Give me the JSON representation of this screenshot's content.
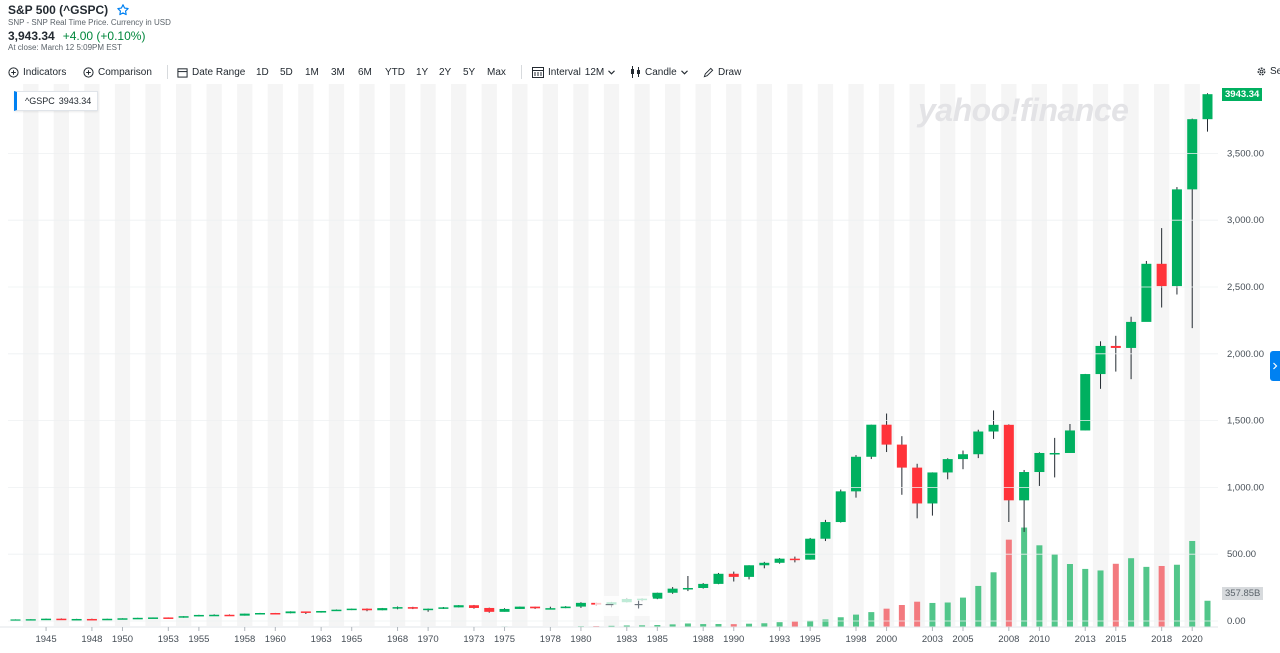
{
  "header": {
    "title": "S&P 500 (^GSPC)",
    "subtitle": "SNP - SNP Real Time Price. Currency in USD",
    "price": "3,943.34",
    "change": "+4.00 (+0.10%)",
    "close_time": "At close: March 12 5:09PM EST"
  },
  "toolbar": {
    "indicators_label": "Indicators",
    "comparison_label": "Comparison",
    "date_range_label": "Date Range",
    "ranges": [
      "1D",
      "5D",
      "1M",
      "3M",
      "6M",
      "YTD",
      "1Y",
      "2Y",
      "5Y",
      "Max"
    ],
    "interval_label": "Interval",
    "interval_value": "12M",
    "chart_type_label": "Candle",
    "draw_label": "Draw",
    "settings_label": "Se"
  },
  "colors": {
    "up": "#00b060",
    "down": "#ff333a",
    "vol_up": "#52c68a",
    "vol_down": "#f37a7f",
    "band": "#f5f5f5",
    "accent": "#0081f2"
  },
  "icons": {
    "indicators": "plus-circle-icon",
    "comparison": "plus-circle-icon",
    "date_range": "calendar-icon",
    "interval": "calendar-grid-icon",
    "candle": "candlestick-icon",
    "draw": "pencil-icon",
    "watchlist": "star-icon",
    "settings": "gear-icon"
  },
  "watermark": "yahoo!finance",
  "legend": {
    "symbol": "^GSPC",
    "value": "3943.34"
  },
  "price_tag": "3943.34",
  "volume_tag": "357.85B",
  "chart_data": {
    "type": "candlestick",
    "y_axis": {
      "min": 0,
      "max": 4000,
      "ticks": [
        0,
        500,
        1000,
        1500,
        2000,
        2500,
        3000,
        3500
      ],
      "tick_labels": [
        "0.00",
        "500.00",
        "1,000.00",
        "1,500.00",
        "2,000.00",
        "2,500.00",
        "3,000.00",
        "3,500.00"
      ],
      "position": "right"
    },
    "x_axis": {
      "tick_labels": [
        "1945",
        "1948",
        "1950",
        "1953",
        "1955",
        "1958",
        "1960",
        "1963",
        "1965",
        "1968",
        "1970",
        "1973",
        "1975",
        "1978",
        "1980",
        "1983",
        "1985",
        "1988",
        "1990",
        "1993",
        "1995",
        "1998",
        "2000",
        "2003",
        "2005",
        "2008",
        "2010",
        "2013",
        "2015",
        "2018",
        "2020"
      ],
      "min_year": 1943,
      "max_year": 2021
    },
    "alternating_year_bands": true,
    "candles": [
      {
        "year": 1943,
        "o": 10.1,
        "h": 12.0,
        "l": 9.8,
        "c": 11.7
      },
      {
        "year": 1944,
        "o": 11.7,
        "h": 13.3,
        "l": 11.5,
        "c": 13.3
      },
      {
        "year": 1945,
        "o": 13.3,
        "h": 17.7,
        "l": 13.2,
        "c": 17.4
      },
      {
        "year": 1946,
        "o": 17.4,
        "h": 19.3,
        "l": 14.1,
        "c": 15.3
      },
      {
        "year": 1947,
        "o": 15.3,
        "h": 16.2,
        "l": 13.7,
        "c": 15.3
      },
      {
        "year": 1948,
        "o": 15.3,
        "h": 17.1,
        "l": 13.8,
        "c": 15.2
      },
      {
        "year": 1949,
        "o": 15.2,
        "h": 16.8,
        "l": 13.5,
        "c": 16.8
      },
      {
        "year": 1950,
        "o": 16.8,
        "h": 20.4,
        "l": 16.6,
        "c": 20.4
      },
      {
        "year": 1951,
        "o": 20.4,
        "h": 23.9,
        "l": 20.3,
        "c": 23.8
      },
      {
        "year": 1952,
        "o": 23.8,
        "h": 26.6,
        "l": 23.1,
        "c": 26.6
      },
      {
        "year": 1953,
        "o": 26.6,
        "h": 26.7,
        "l": 22.7,
        "c": 24.8
      },
      {
        "year": 1954,
        "o": 24.8,
        "h": 36.0,
        "l": 24.8,
        "c": 35.98
      },
      {
        "year": 1955,
        "o": 36.0,
        "h": 46.4,
        "l": 34.6,
        "c": 45.5
      },
      {
        "year": 1956,
        "o": 45.5,
        "h": 49.7,
        "l": 43.1,
        "c": 46.7
      },
      {
        "year": 1957,
        "o": 46.7,
        "h": 49.1,
        "l": 38.9,
        "c": 39.99
      },
      {
        "year": 1958,
        "o": 40.0,
        "h": 55.2,
        "l": 40.3,
        "c": 55.2
      },
      {
        "year": 1959,
        "o": 55.2,
        "h": 60.7,
        "l": 53.6,
        "c": 59.9
      },
      {
        "year": 1960,
        "o": 59.9,
        "h": 60.4,
        "l": 52.3,
        "c": 58.1
      },
      {
        "year": 1961,
        "o": 58.1,
        "h": 72.6,
        "l": 57.6,
        "c": 71.6
      },
      {
        "year": 1962,
        "o": 71.6,
        "h": 71.1,
        "l": 52.3,
        "c": 63.1
      },
      {
        "year": 1963,
        "o": 63.1,
        "h": 75.0,
        "l": 62.7,
        "c": 75.0
      },
      {
        "year": 1964,
        "o": 75.0,
        "h": 86.3,
        "l": 75.4,
        "c": 84.8
      },
      {
        "year": 1965,
        "o": 84.8,
        "h": 92.6,
        "l": 81.6,
        "c": 92.4
      },
      {
        "year": 1966,
        "o": 92.4,
        "h": 94.1,
        "l": 73.2,
        "c": 80.3
      },
      {
        "year": 1967,
        "o": 80.3,
        "h": 97.6,
        "l": 80.4,
        "c": 96.5
      },
      {
        "year": 1968,
        "o": 96.5,
        "h": 108.4,
        "l": 87.7,
        "c": 103.9
      },
      {
        "year": 1969,
        "o": 103.9,
        "h": 106.2,
        "l": 89.2,
        "c": 92.1
      },
      {
        "year": 1970,
        "o": 92.1,
        "h": 93.5,
        "l": 69.3,
        "c": 92.2
      },
      {
        "year": 1971,
        "o": 92.2,
        "h": 104.8,
        "l": 90.2,
        "c": 102.1
      },
      {
        "year": 1972,
        "o": 102.1,
        "h": 119.1,
        "l": 101.7,
        "c": 118.1
      },
      {
        "year": 1973,
        "o": 118.1,
        "h": 120.2,
        "l": 92.2,
        "c": 97.6
      },
      {
        "year": 1974,
        "o": 97.6,
        "h": 99.8,
        "l": 62.3,
        "c": 68.6
      },
      {
        "year": 1975,
        "o": 68.6,
        "h": 95.6,
        "l": 70.0,
        "c": 90.2
      },
      {
        "year": 1976,
        "o": 90.2,
        "h": 107.8,
        "l": 90.9,
        "c": 107.5
      },
      {
        "year": 1977,
        "o": 107.5,
        "h": 107.0,
        "l": 90.7,
        "c": 95.1
      },
      {
        "year": 1978,
        "o": 95.1,
        "h": 106.9,
        "l": 86.9,
        "c": 96.1
      },
      {
        "year": 1979,
        "o": 96.1,
        "h": 111.3,
        "l": 96.1,
        "c": 107.9
      },
      {
        "year": 1980,
        "o": 107.9,
        "h": 140.5,
        "l": 98.2,
        "c": 135.8
      },
      {
        "year": 1981,
        "o": 135.8,
        "h": 138.1,
        "l": 112.8,
        "c": 122.6
      },
      {
        "year": 1982,
        "o": 122.6,
        "h": 143.0,
        "l": 102.4,
        "c": 140.6
      },
      {
        "year": 1983,
        "o": 140.6,
        "h": 172.7,
        "l": 138.3,
        "c": 164.9
      },
      {
        "year": 1984,
        "o": 164.9,
        "h": 170.4,
        "l": 147.8,
        "c": 167.2
      },
      {
        "year": 1985,
        "o": 167.2,
        "h": 212.0,
        "l": 163.4,
        "c": 211.3
      },
      {
        "year": 1986,
        "o": 211.3,
        "h": 254.0,
        "l": 203.5,
        "c": 242.2
      },
      {
        "year": 1987,
        "o": 242.2,
        "h": 336.8,
        "l": 223.9,
        "c": 247.1
      },
      {
        "year": 1988,
        "o": 247.1,
        "h": 283.7,
        "l": 242.6,
        "c": 277.7
      },
      {
        "year": 1989,
        "o": 277.7,
        "h": 359.8,
        "l": 275.3,
        "c": 353.4
      },
      {
        "year": 1990,
        "o": 353.4,
        "h": 369.8,
        "l": 295.5,
        "c": 330.2
      },
      {
        "year": 1991,
        "o": 330.2,
        "h": 417.1,
        "l": 311.5,
        "c": 417.1
      },
      {
        "year": 1992,
        "o": 417.1,
        "h": 442.7,
        "l": 394.5,
        "c": 435.7
      },
      {
        "year": 1993,
        "o": 435.7,
        "h": 470.9,
        "l": 429.1,
        "c": 466.5
      },
      {
        "year": 1994,
        "o": 466.5,
        "h": 482.0,
        "l": 438.9,
        "c": 459.3
      },
      {
        "year": 1995,
        "o": 459.3,
        "h": 621.7,
        "l": 459.1,
        "c": 615.9
      },
      {
        "year": 1996,
        "o": 615.9,
        "h": 757.0,
        "l": 598.5,
        "c": 740.7
      },
      {
        "year": 1997,
        "o": 740.7,
        "h": 983.8,
        "l": 737.0,
        "c": 970.4
      },
      {
        "year": 1998,
        "o": 970.4,
        "h": 1241.8,
        "l": 923.3,
        "c": 1229.2
      },
      {
        "year": 1999,
        "o": 1229.2,
        "h": 1469.3,
        "l": 1212.2,
        "c": 1469.3
      },
      {
        "year": 2000,
        "o": 1469.3,
        "h": 1552.9,
        "l": 1264.7,
        "c": 1320.3
      },
      {
        "year": 2001,
        "o": 1320.3,
        "h": 1383.4,
        "l": 944.8,
        "c": 1148.1
      },
      {
        "year": 2002,
        "o": 1148.1,
        "h": 1176.9,
        "l": 768.6,
        "c": 879.8
      },
      {
        "year": 2003,
        "o": 879.8,
        "h": 1112.6,
        "l": 788.9,
        "c": 1111.9
      },
      {
        "year": 2004,
        "o": 1111.9,
        "h": 1217.9,
        "l": 1060.7,
        "c": 1211.9
      },
      {
        "year": 2005,
        "o": 1211.9,
        "h": 1275.8,
        "l": 1136.2,
        "c": 1248.3
      },
      {
        "year": 2006,
        "o": 1248.3,
        "h": 1431.8,
        "l": 1219.3,
        "c": 1418.3
      },
      {
        "year": 2007,
        "o": 1418.3,
        "h": 1576.1,
        "l": 1363.0,
        "c": 1468.4
      },
      {
        "year": 2008,
        "o": 1468.4,
        "h": 1471.8,
        "l": 741.0,
        "c": 903.3
      },
      {
        "year": 2009,
        "o": 903.3,
        "h": 1130.4,
        "l": 666.8,
        "c": 1115.1
      },
      {
        "year": 2010,
        "o": 1115.1,
        "h": 1262.6,
        "l": 1010.9,
        "c": 1257.6
      },
      {
        "year": 2011,
        "o": 1257.6,
        "h": 1370.6,
        "l": 1074.8,
        "c": 1257.6
      },
      {
        "year": 2012,
        "o": 1257.6,
        "h": 1474.5,
        "l": 1258.9,
        "c": 1426.2
      },
      {
        "year": 2013,
        "o": 1426.2,
        "h": 1849.4,
        "l": 1426.2,
        "c": 1848.4
      },
      {
        "year": 2014,
        "o": 1848.4,
        "h": 2093.6,
        "l": 1737.9,
        "c": 2058.9
      },
      {
        "year": 2015,
        "o": 2058.9,
        "h": 2134.7,
        "l": 1867.0,
        "c": 2043.9
      },
      {
        "year": 2016,
        "o": 2043.9,
        "h": 2277.5,
        "l": 1810.1,
        "c": 2238.8
      },
      {
        "year": 2017,
        "o": 2238.8,
        "h": 2694.9,
        "l": 2245.1,
        "c": 2673.6
      },
      {
        "year": 2018,
        "o": 2673.6,
        "h": 2940.9,
        "l": 2346.6,
        "c": 2506.9
      },
      {
        "year": 2019,
        "o": 2506.9,
        "h": 3247.9,
        "l": 2443.9,
        "c": 3230.8
      },
      {
        "year": 2020,
        "o": 3230.8,
        "h": 3760.2,
        "l": 2191.9,
        "c": 3756.1
      },
      {
        "year": 2021,
        "o": 3756.1,
        "h": 3950.4,
        "l": 3662.7,
        "c": 3943.3
      }
    ],
    "volume": {
      "unit": "billions",
      "tag": "357.85B",
      "values": [
        {
          "year": 1950,
          "v": 1.0
        },
        {
          "year": 1955,
          "v": 1.5
        },
        {
          "year": 1960,
          "v": 2.0
        },
        {
          "year": 1965,
          "v": 3.5
        },
        {
          "year": 1970,
          "v": 6.0
        },
        {
          "year": 1975,
          "v": 8.0
        },
        {
          "year": 1980,
          "v": 11.0
        },
        {
          "year": 1981,
          "v": 12.0
        },
        {
          "year": 1982,
          "v": 16.0
        },
        {
          "year": 1983,
          "v": 21.0
        },
        {
          "year": 1984,
          "v": 23.0
        },
        {
          "year": 1985,
          "v": 27.0
        },
        {
          "year": 1986,
          "v": 36.0
        },
        {
          "year": 1987,
          "v": 48.0
        },
        {
          "year": 1988,
          "v": 40.0
        },
        {
          "year": 1989,
          "v": 41.0
        },
        {
          "year": 1990,
          "v": 39.0
        },
        {
          "year": 1991,
          "v": 45.0
        },
        {
          "year": 1992,
          "v": 51.0
        },
        {
          "year": 1993,
          "v": 66.0
        },
        {
          "year": 1994,
          "v": 73.0
        },
        {
          "year": 1995,
          "v": 87.0
        },
        {
          "year": 1996,
          "v": 103.0
        },
        {
          "year": 1997,
          "v": 133.0
        },
        {
          "year": 1998,
          "v": 169.0
        },
        {
          "year": 1999,
          "v": 203.0
        },
        {
          "year": 2000,
          "v": 250.0
        },
        {
          "year": 2001,
          "v": 300.0
        },
        {
          "year": 2002,
          "v": 345.0
        },
        {
          "year": 2003,
          "v": 328.0
        },
        {
          "year": 2004,
          "v": 334.0
        },
        {
          "year": 2005,
          "v": 401.0
        },
        {
          "year": 2006,
          "v": 560.0
        },
        {
          "year": 2007,
          "v": 746.0
        },
        {
          "year": 2008,
          "v": 1191.0
        },
        {
          "year": 2009,
          "v": 1356.0
        },
        {
          "year": 2010,
          "v": 1114.0
        },
        {
          "year": 2011,
          "v": 995.0
        },
        {
          "year": 2012,
          "v": 859.0
        },
        {
          "year": 2013,
          "v": 792.0
        },
        {
          "year": 2014,
          "v": 771.0
        },
        {
          "year": 2015,
          "v": 862.0
        },
        {
          "year": 2016,
          "v": 938.0
        },
        {
          "year": 2017,
          "v": 820.0
        },
        {
          "year": 2018,
          "v": 832.0
        },
        {
          "year": 2019,
          "v": 849.0
        },
        {
          "year": 2020,
          "v": 1173.0
        },
        {
          "year": 2021,
          "v": 357.85
        }
      ]
    },
    "volume_axis_max": 1500
  }
}
